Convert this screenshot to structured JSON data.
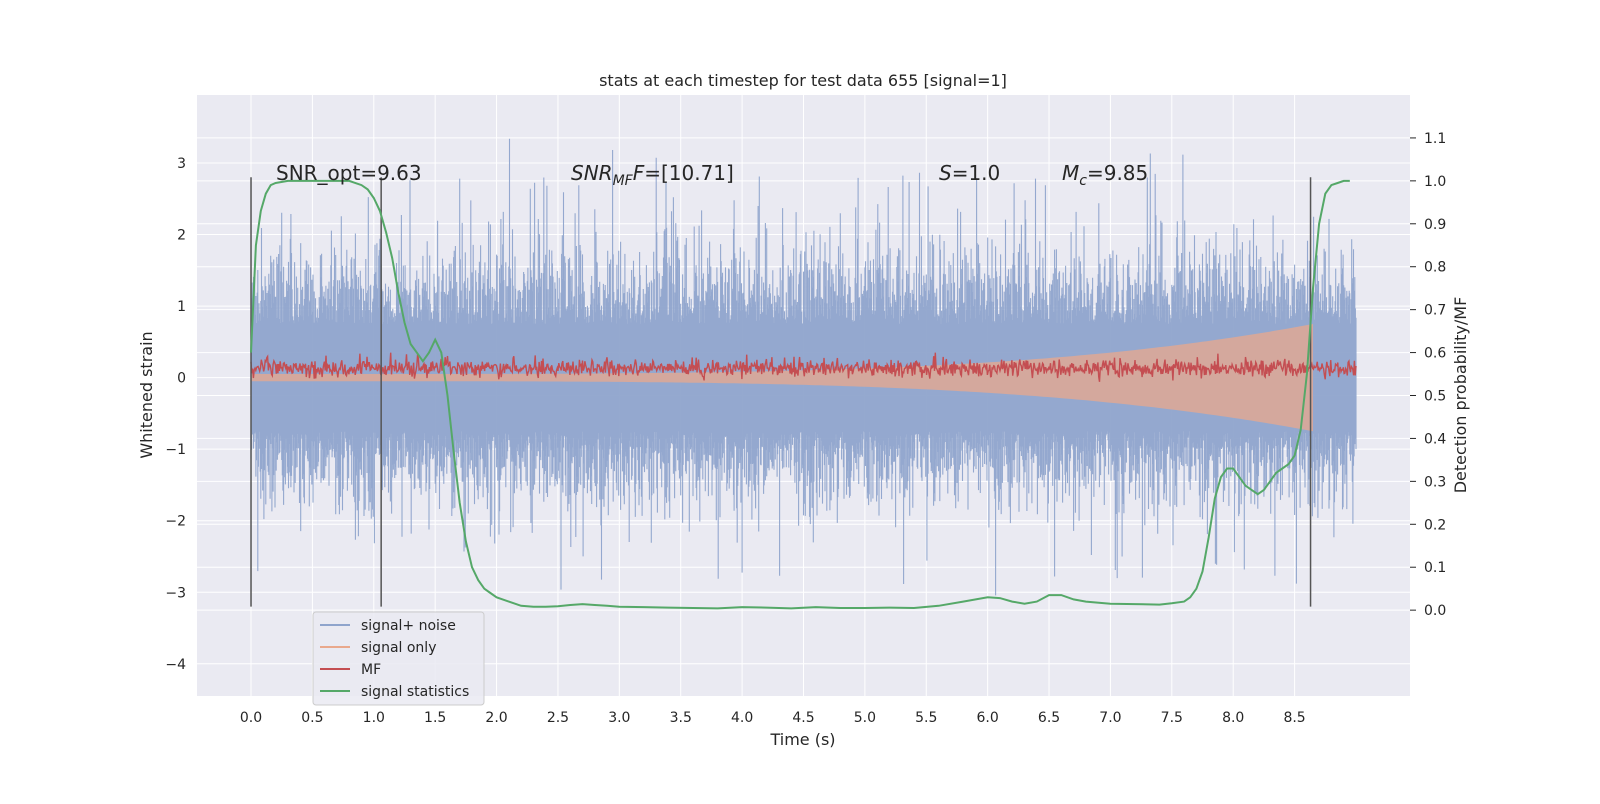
{
  "chart_data": {
    "type": "line",
    "title": "stats at each timestep for test data 655 [signal=1]",
    "xlabel": "Time (s)",
    "ylabel_left": "Whitened strain",
    "ylabel_right": "Detection probability/MF",
    "xlim": [
      -0.44,
      9.44
    ],
    "ylim_left": [
      -4.45,
      3.95
    ],
    "ylim_right": [
      -0.2,
      1.2
    ],
    "x_ticks": [
      "0.0",
      "0.5",
      "1.0",
      "1.5",
      "2.0",
      "2.5",
      "3.0",
      "3.5",
      "4.0",
      "4.5",
      "5.0",
      "5.5",
      "6.0",
      "6.5",
      "7.0",
      "7.5",
      "8.0",
      "8.5"
    ],
    "y_ticks_left": [
      "3",
      "2",
      "1",
      "0",
      "−1",
      "−2",
      "−3",
      "−4"
    ],
    "y_ticks_right": [
      "1.1",
      "1.0",
      "0.9",
      "0.8",
      "0.7",
      "0.6",
      "0.5",
      "0.4",
      "0.3",
      "0.2",
      "0.1",
      "0.0"
    ],
    "grid": true,
    "legend_position": "lower-left",
    "annotations": {
      "snr_opt": "SNR_opt=9.63",
      "snr_mf_italic": "SNR",
      "snr_mf_sub": "MF",
      "snr_mf_rest": "=[10.71]",
      "s_italic": "S",
      "s_rest": "=1.0",
      "mc_italic": "M",
      "mc_sub": "c",
      "mc_rest": "=9.85"
    },
    "vertical_markers_x": [
      0.0,
      1.06,
      8.63
    ],
    "series": [
      {
        "name": "signal+ noise",
        "color": "#8fa4cc",
        "description_values": {
          "x_range": [
            0.0,
            9.0
          ],
          "max_abs": 3.6
        }
      },
      {
        "name": "signal only",
        "color": "#e9a88c",
        "description_values": {
          "x_range": [
            0.0,
            8.65
          ],
          "envelope_start": 0.05,
          "envelope_end": 0.75
        }
      },
      {
        "name": "MF",
        "color": "#c44e52",
        "description_values": {
          "x_range": [
            0.0,
            9.0
          ],
          "mean": 0.13,
          "spread": 0.12
        }
      },
      {
        "name": "signal statistics",
        "color": "#55a868",
        "x": [
          0.0,
          0.04,
          0.08,
          0.12,
          0.16,
          0.2,
          0.3,
          0.4,
          0.5,
          0.6,
          0.7,
          0.8,
          0.9,
          0.95,
          1.0,
          1.05,
          1.1,
          1.15,
          1.2,
          1.25,
          1.3,
          1.35,
          1.4,
          1.45,
          1.5,
          1.55,
          1.6,
          1.65,
          1.7,
          1.75,
          1.8,
          1.85,
          1.9,
          1.95,
          2.0,
          2.1,
          2.2,
          2.3,
          2.4,
          2.5,
          2.6,
          2.7,
          2.8,
          2.9,
          3.0,
          3.2,
          3.4,
          3.6,
          3.8,
          4.0,
          4.2,
          4.4,
          4.6,
          4.8,
          5.0,
          5.2,
          5.4,
          5.6,
          5.8,
          6.0,
          6.1,
          6.2,
          6.3,
          6.4,
          6.5,
          6.6,
          6.7,
          6.8,
          7.0,
          7.2,
          7.4,
          7.5,
          7.6,
          7.65,
          7.7,
          7.75,
          7.8,
          7.85,
          7.9,
          7.95,
          8.0,
          8.05,
          8.1,
          8.15,
          8.2,
          8.25,
          8.3,
          8.35,
          8.4,
          8.45,
          8.5,
          8.55,
          8.6,
          8.65,
          8.7,
          8.75,
          8.8,
          8.85,
          8.9,
          8.95
        ],
        "y": [
          0.6,
          0.85,
          0.93,
          0.97,
          0.99,
          0.995,
          1.0,
          1.0,
          1.0,
          1.0,
          1.0,
          1.0,
          0.99,
          0.98,
          0.96,
          0.93,
          0.88,
          0.82,
          0.74,
          0.67,
          0.62,
          0.6,
          0.58,
          0.6,
          0.63,
          0.6,
          0.5,
          0.37,
          0.25,
          0.16,
          0.1,
          0.07,
          0.05,
          0.04,
          0.03,
          0.02,
          0.01,
          0.008,
          0.008,
          0.009,
          0.012,
          0.014,
          0.012,
          0.01,
          0.008,
          0.007,
          0.006,
          0.005,
          0.004,
          0.007,
          0.006,
          0.004,
          0.007,
          0.005,
          0.005,
          0.006,
          0.005,
          0.01,
          0.02,
          0.03,
          0.028,
          0.02,
          0.015,
          0.02,
          0.035,
          0.035,
          0.025,
          0.02,
          0.015,
          0.014,
          0.013,
          0.016,
          0.02,
          0.03,
          0.05,
          0.09,
          0.17,
          0.26,
          0.31,
          0.33,
          0.33,
          0.31,
          0.29,
          0.28,
          0.27,
          0.28,
          0.3,
          0.32,
          0.33,
          0.34,
          0.36,
          0.42,
          0.55,
          0.75,
          0.9,
          0.97,
          0.99,
          0.995,
          1.0,
          1.0
        ]
      }
    ]
  }
}
